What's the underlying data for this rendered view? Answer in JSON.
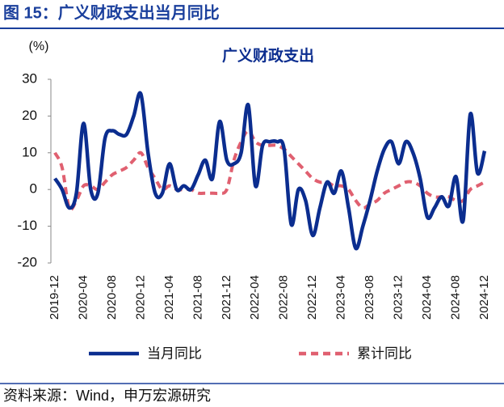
{
  "header": {
    "title": "图 15：广义财政支出当月同比"
  },
  "chart_data": {
    "type": "line",
    "title": "广义财政支出",
    "y_label": "(%)",
    "categories": [
      "2019-12",
      null,
      null,
      null,
      "2020-04",
      null,
      null,
      null,
      "2020-08",
      null,
      null,
      null,
      "2020-12",
      null,
      null,
      null,
      "2021-04",
      null,
      null,
      null,
      "2021-08",
      null,
      null,
      null,
      "2021-12",
      null,
      null,
      null,
      "2022-04",
      null,
      null,
      null,
      "2022-08",
      null,
      null,
      null,
      "2022-12",
      null,
      null,
      null,
      "2023-04",
      null,
      null,
      null,
      "2023-08",
      null,
      null,
      null,
      "2023-12",
      null,
      null,
      null,
      "2024-04",
      null,
      null,
      null,
      "2024-08",
      null,
      null,
      null,
      "2024-12"
    ],
    "series": [
      {
        "name": "当月同比",
        "color": "#0b2d8f",
        "dashed": false,
        "values": [
          3,
          0,
          -5,
          -1,
          18,
          0,
          -1,
          14,
          16,
          15,
          15,
          20,
          26,
          10,
          -1,
          -1,
          7,
          0,
          1,
          0,
          4,
          8,
          3,
          18.5,
          8,
          7,
          10,
          23,
          1,
          12,
          13,
          13,
          11,
          -9.5,
          0,
          -3,
          -12.5,
          -5,
          2,
          -1,
          5,
          -5,
          -16,
          -10,
          -3,
          5,
          11,
          13,
          7,
          13,
          10,
          3,
          -7.5,
          -5,
          -2,
          -4.5,
          3.5,
          -8.5,
          20.5,
          4.5,
          10.5
        ]
      },
      {
        "name": "累计同比",
        "color": "#e06070",
        "dashed": true,
        "values": [
          10,
          6,
          -5,
          -3,
          1,
          1,
          0,
          2,
          4,
          5,
          6,
          8,
          10,
          6,
          3,
          0,
          1,
          0,
          0,
          0,
          -1,
          -1,
          -1,
          -1,
          0,
          8,
          13,
          16,
          13,
          12,
          12,
          12,
          11,
          9,
          7,
          5,
          3,
          2,
          2,
          1,
          1,
          0,
          -3,
          -5,
          -4,
          -3,
          -1,
          0,
          1,
          2,
          2,
          1,
          -1,
          -2,
          -2,
          -2,
          -3,
          -3,
          0,
          1,
          2
        ]
      }
    ],
    "ylim": [
      -20,
      30
    ],
    "yticks": [
      -20,
      -10,
      0,
      10,
      20,
      30
    ]
  },
  "footer": {
    "source": "资料来源：Wind，申万宏源研究"
  }
}
